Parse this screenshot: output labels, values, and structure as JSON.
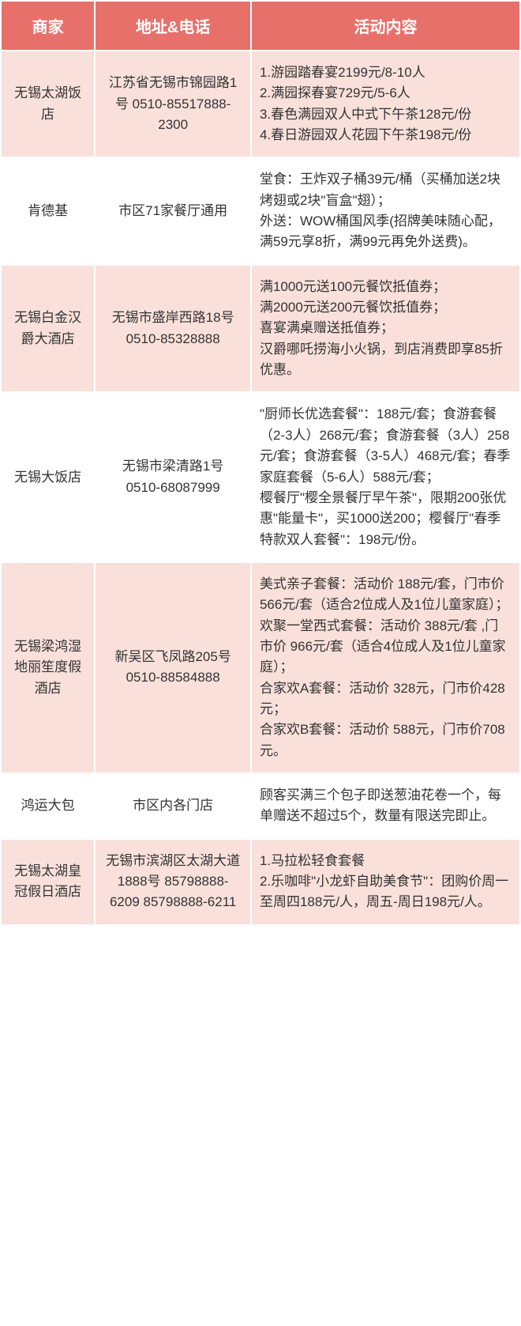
{
  "headers": {
    "merchant": "商家",
    "address": "地址&电话",
    "content": "活动内容"
  },
  "rows": [
    {
      "merchant": "无锡太湖饭店",
      "address": "江苏省无锡市锦园路1号 0510-85517888-2300",
      "content": "1.游园踏春宴2199元/8-10人\n2.满园探春宴729元/5-6人\n3.春色满园双人中式下午茶128元/份\n4.春日游园双人花园下午茶198元/份"
    },
    {
      "merchant": "肯德基",
      "address": "市区71家餐厅通用",
      "content": "堂食：王炸双子桶39元/桶（买桶加送2块烤翅或2块\"盲盒\"翅）；\n外送：WOW桶国风季(招牌美味随心配，满59元享8折，满99元再免外送费)。"
    },
    {
      "merchant": "无锡白金汉爵大酒店",
      "address": "无锡市盛岸西路18号 0510-85328888",
      "content": "满1000元送100元餐饮抵值券；\n满2000元送200元餐饮抵值券；\n喜宴满桌赠送抵值券；\n汉爵哪吒捞海小火锅，到店消费即享85折优惠。"
    },
    {
      "merchant": "无锡大饭店",
      "address": "无锡市梁清路1号 0510-68087999",
      "content": "\"厨师长优选套餐\"：188元/套；食游套餐（2-3人）268元/套；食游套餐（3人）258元/套；食游套餐（3-5人）468元/套；春季家庭套餐（5-6人）588元/套；\n樱餐厅\"樱全景餐厅早午茶\"，限期200张优惠\"能量卡\"，买1000送200；樱餐厅\"春季特款双人套餐\"：198元/份。"
    },
    {
      "merchant": "无锡梁鸿湿地丽笙度假酒店",
      "address": "新吴区飞凤路205号 0510-88584888",
      "content": "美式亲子套餐：活动价 188元/套，门市价 566元/套（适合2位成人及1位儿童家庭）；\n欢聚一堂西式套餐：活动价 388元/套 ,门市价 966元/套（适合4位成人及1位儿童家庭）；\n合家欢A套餐：活动价 328元，门市价428元；\n合家欢B套餐：活动价 588元，门市价708元。"
    },
    {
      "merchant": "鸿运大包",
      "address": "市区内各门店",
      "content": "顾客买满三个包子即送葱油花卷一个，每单赠送不超过5个，数量有限送完即止。"
    },
    {
      "merchant": "无锡太湖皇冠假日酒店",
      "address": "无锡市滨湖区太湖大道1888号 85798888-6209 85798888-6211",
      "content": "1.马拉松轻食套餐\n2.乐咖啡\"小龙虾自助美食节\"：团购价周一至周四188元/人，周五-周日198元/人。"
    }
  ]
}
